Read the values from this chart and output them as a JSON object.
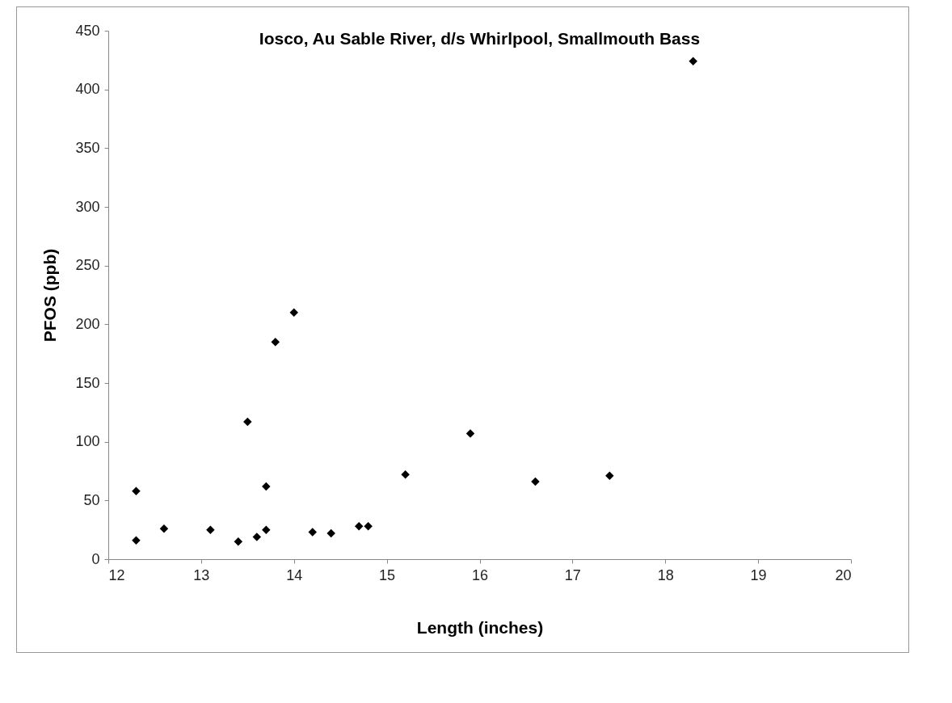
{
  "chart_data": {
    "type": "scatter",
    "title": "Iosco, Au Sable River, d/s Whirlpool, Smallmouth Bass",
    "xlabel": "Length (inches)",
    "ylabel": "PFOS (ppb)",
    "x": [
      12.3,
      12.3,
      12.6,
      13.1,
      13.4,
      13.5,
      13.6,
      13.7,
      13.7,
      13.8,
      14.0,
      14.2,
      14.4,
      14.7,
      14.8,
      15.2,
      15.9,
      16.6,
      17.4,
      18.3
    ],
    "series": [
      {
        "color": "#000000",
        "values": [
          58,
          16,
          26,
          25,
          15,
          117,
          19,
          25,
          62,
          185,
          210,
          23,
          22,
          28,
          28,
          72,
          107,
          66,
          71,
          424
        ]
      }
    ],
    "marker": "diamond",
    "xlim": [
      12,
      20
    ],
    "xticks": [
      12,
      13,
      14,
      15,
      16,
      17,
      18,
      19,
      20
    ],
    "ylim": [
      0,
      450
    ],
    "yticks": [
      0,
      50,
      100,
      150,
      200,
      250,
      300,
      350,
      400,
      450
    ]
  }
}
